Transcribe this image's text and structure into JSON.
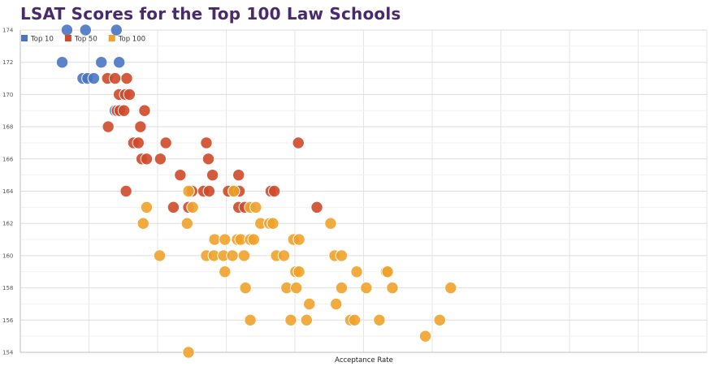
{
  "chart_data": {
    "type": "scatter",
    "title": "LSAT Scores for the Top 100 Law Schools",
    "xlabel": "Acceptance Rate",
    "ylabel": "",
    "ylim": [
      154,
      174
    ],
    "yticks": [
      154,
      156,
      158,
      160,
      162,
      164,
      166,
      168,
      170,
      172,
      174
    ],
    "xlim": [
      0,
      100
    ],
    "grid": true,
    "legend_position": "top-left",
    "series": [
      {
        "name": "Top 10",
        "color": "#4a74c4",
        "points": [
          {
            "x": 6.8,
            "y": 174
          },
          {
            "x": 9.5,
            "y": 174
          },
          {
            "x": 14,
            "y": 174
          },
          {
            "x": 6.1,
            "y": 172
          },
          {
            "x": 11.8,
            "y": 172
          },
          {
            "x": 14.4,
            "y": 172
          },
          {
            "x": 9.1,
            "y": 171
          },
          {
            "x": 9.8,
            "y": 171
          },
          {
            "x": 10.7,
            "y": 171
          },
          {
            "x": 13.8,
            "y": 169
          }
        ]
      },
      {
        "name": "Top 50",
        "color": "#d0492a",
        "points": [
          {
            "x": 12.7,
            "y": 171
          },
          {
            "x": 13.8,
            "y": 171
          },
          {
            "x": 15.5,
            "y": 171
          },
          {
            "x": 14.4,
            "y": 170
          },
          {
            "x": 15.3,
            "y": 170
          },
          {
            "x": 15.9,
            "y": 170
          },
          {
            "x": 14.1,
            "y": 169
          },
          {
            "x": 14.5,
            "y": 169
          },
          {
            "x": 15.1,
            "y": 169
          },
          {
            "x": 18.1,
            "y": 169
          },
          {
            "x": 12.8,
            "y": 168
          },
          {
            "x": 17.5,
            "y": 168
          },
          {
            "x": 16.5,
            "y": 167
          },
          {
            "x": 17.2,
            "y": 167
          },
          {
            "x": 21.2,
            "y": 167
          },
          {
            "x": 27.1,
            "y": 167
          },
          {
            "x": 40.5,
            "y": 167
          },
          {
            "x": 17.7,
            "y": 166
          },
          {
            "x": 18.4,
            "y": 166
          },
          {
            "x": 20.4,
            "y": 166
          },
          {
            "x": 27.4,
            "y": 166
          },
          {
            "x": 23.3,
            "y": 165
          },
          {
            "x": 28.0,
            "y": 165
          },
          {
            "x": 31.8,
            "y": 165
          },
          {
            "x": 15.4,
            "y": 164
          },
          {
            "x": 25.0,
            "y": 164
          },
          {
            "x": 26.7,
            "y": 164
          },
          {
            "x": 27.5,
            "y": 164
          },
          {
            "x": 30.3,
            "y": 164
          },
          {
            "x": 31.2,
            "y": 164
          },
          {
            "x": 31.9,
            "y": 164
          },
          {
            "x": 36.5,
            "y": 164
          },
          {
            "x": 37.0,
            "y": 164
          },
          {
            "x": 22.3,
            "y": 163
          },
          {
            "x": 24.5,
            "y": 163
          },
          {
            "x": 31.8,
            "y": 163
          },
          {
            "x": 32.7,
            "y": 163
          },
          {
            "x": 43.2,
            "y": 163
          }
        ]
      },
      {
        "name": "Top 100",
        "color": "#f0a22a",
        "points": [
          {
            "x": 24.5,
            "y": 164
          },
          {
            "x": 31.1,
            "y": 164
          },
          {
            "x": 18.4,
            "y": 163
          },
          {
            "x": 25.1,
            "y": 163
          },
          {
            "x": 33.5,
            "y": 163
          },
          {
            "x": 34.3,
            "y": 163
          },
          {
            "x": 17.9,
            "y": 162
          },
          {
            "x": 24.3,
            "y": 162
          },
          {
            "x": 35.0,
            "y": 162
          },
          {
            "x": 36.3,
            "y": 162
          },
          {
            "x": 36.8,
            "y": 162
          },
          {
            "x": 45.2,
            "y": 162
          },
          {
            "x": 28.3,
            "y": 161
          },
          {
            "x": 29.8,
            "y": 161
          },
          {
            "x": 31.6,
            "y": 161
          },
          {
            "x": 32.1,
            "y": 161
          },
          {
            "x": 33.5,
            "y": 161
          },
          {
            "x": 34.0,
            "y": 161
          },
          {
            "x": 39.8,
            "y": 161
          },
          {
            "x": 40.6,
            "y": 161
          },
          {
            "x": 20.3,
            "y": 160
          },
          {
            "x": 27.1,
            "y": 160
          },
          {
            "x": 28.2,
            "y": 160
          },
          {
            "x": 29.6,
            "y": 160
          },
          {
            "x": 30.9,
            "y": 160
          },
          {
            "x": 32.6,
            "y": 160
          },
          {
            "x": 37.3,
            "y": 160
          },
          {
            "x": 38.4,
            "y": 160
          },
          {
            "x": 45.8,
            "y": 160
          },
          {
            "x": 46.8,
            "y": 160
          },
          {
            "x": 29.8,
            "y": 159
          },
          {
            "x": 40.1,
            "y": 159
          },
          {
            "x": 40.6,
            "y": 159
          },
          {
            "x": 49.0,
            "y": 159
          },
          {
            "x": 53.3,
            "y": 159
          },
          {
            "x": 53.5,
            "y": 159
          },
          {
            "x": 32.8,
            "y": 158
          },
          {
            "x": 38.8,
            "y": 158
          },
          {
            "x": 40.2,
            "y": 158
          },
          {
            "x": 46.8,
            "y": 158
          },
          {
            "x": 50.4,
            "y": 158
          },
          {
            "x": 54.2,
            "y": 158
          },
          {
            "x": 62.7,
            "y": 158
          },
          {
            "x": 42.1,
            "y": 157
          },
          {
            "x": 46.0,
            "y": 157
          },
          {
            "x": 33.5,
            "y": 156
          },
          {
            "x": 39.4,
            "y": 156
          },
          {
            "x": 41.7,
            "y": 156
          },
          {
            "x": 48.1,
            "y": 156
          },
          {
            "x": 48.7,
            "y": 156
          },
          {
            "x": 52.3,
            "y": 156
          },
          {
            "x": 61.1,
            "y": 156
          },
          {
            "x": 59.0,
            "y": 155
          },
          {
            "x": 24.5,
            "y": 154
          }
        ]
      }
    ]
  }
}
